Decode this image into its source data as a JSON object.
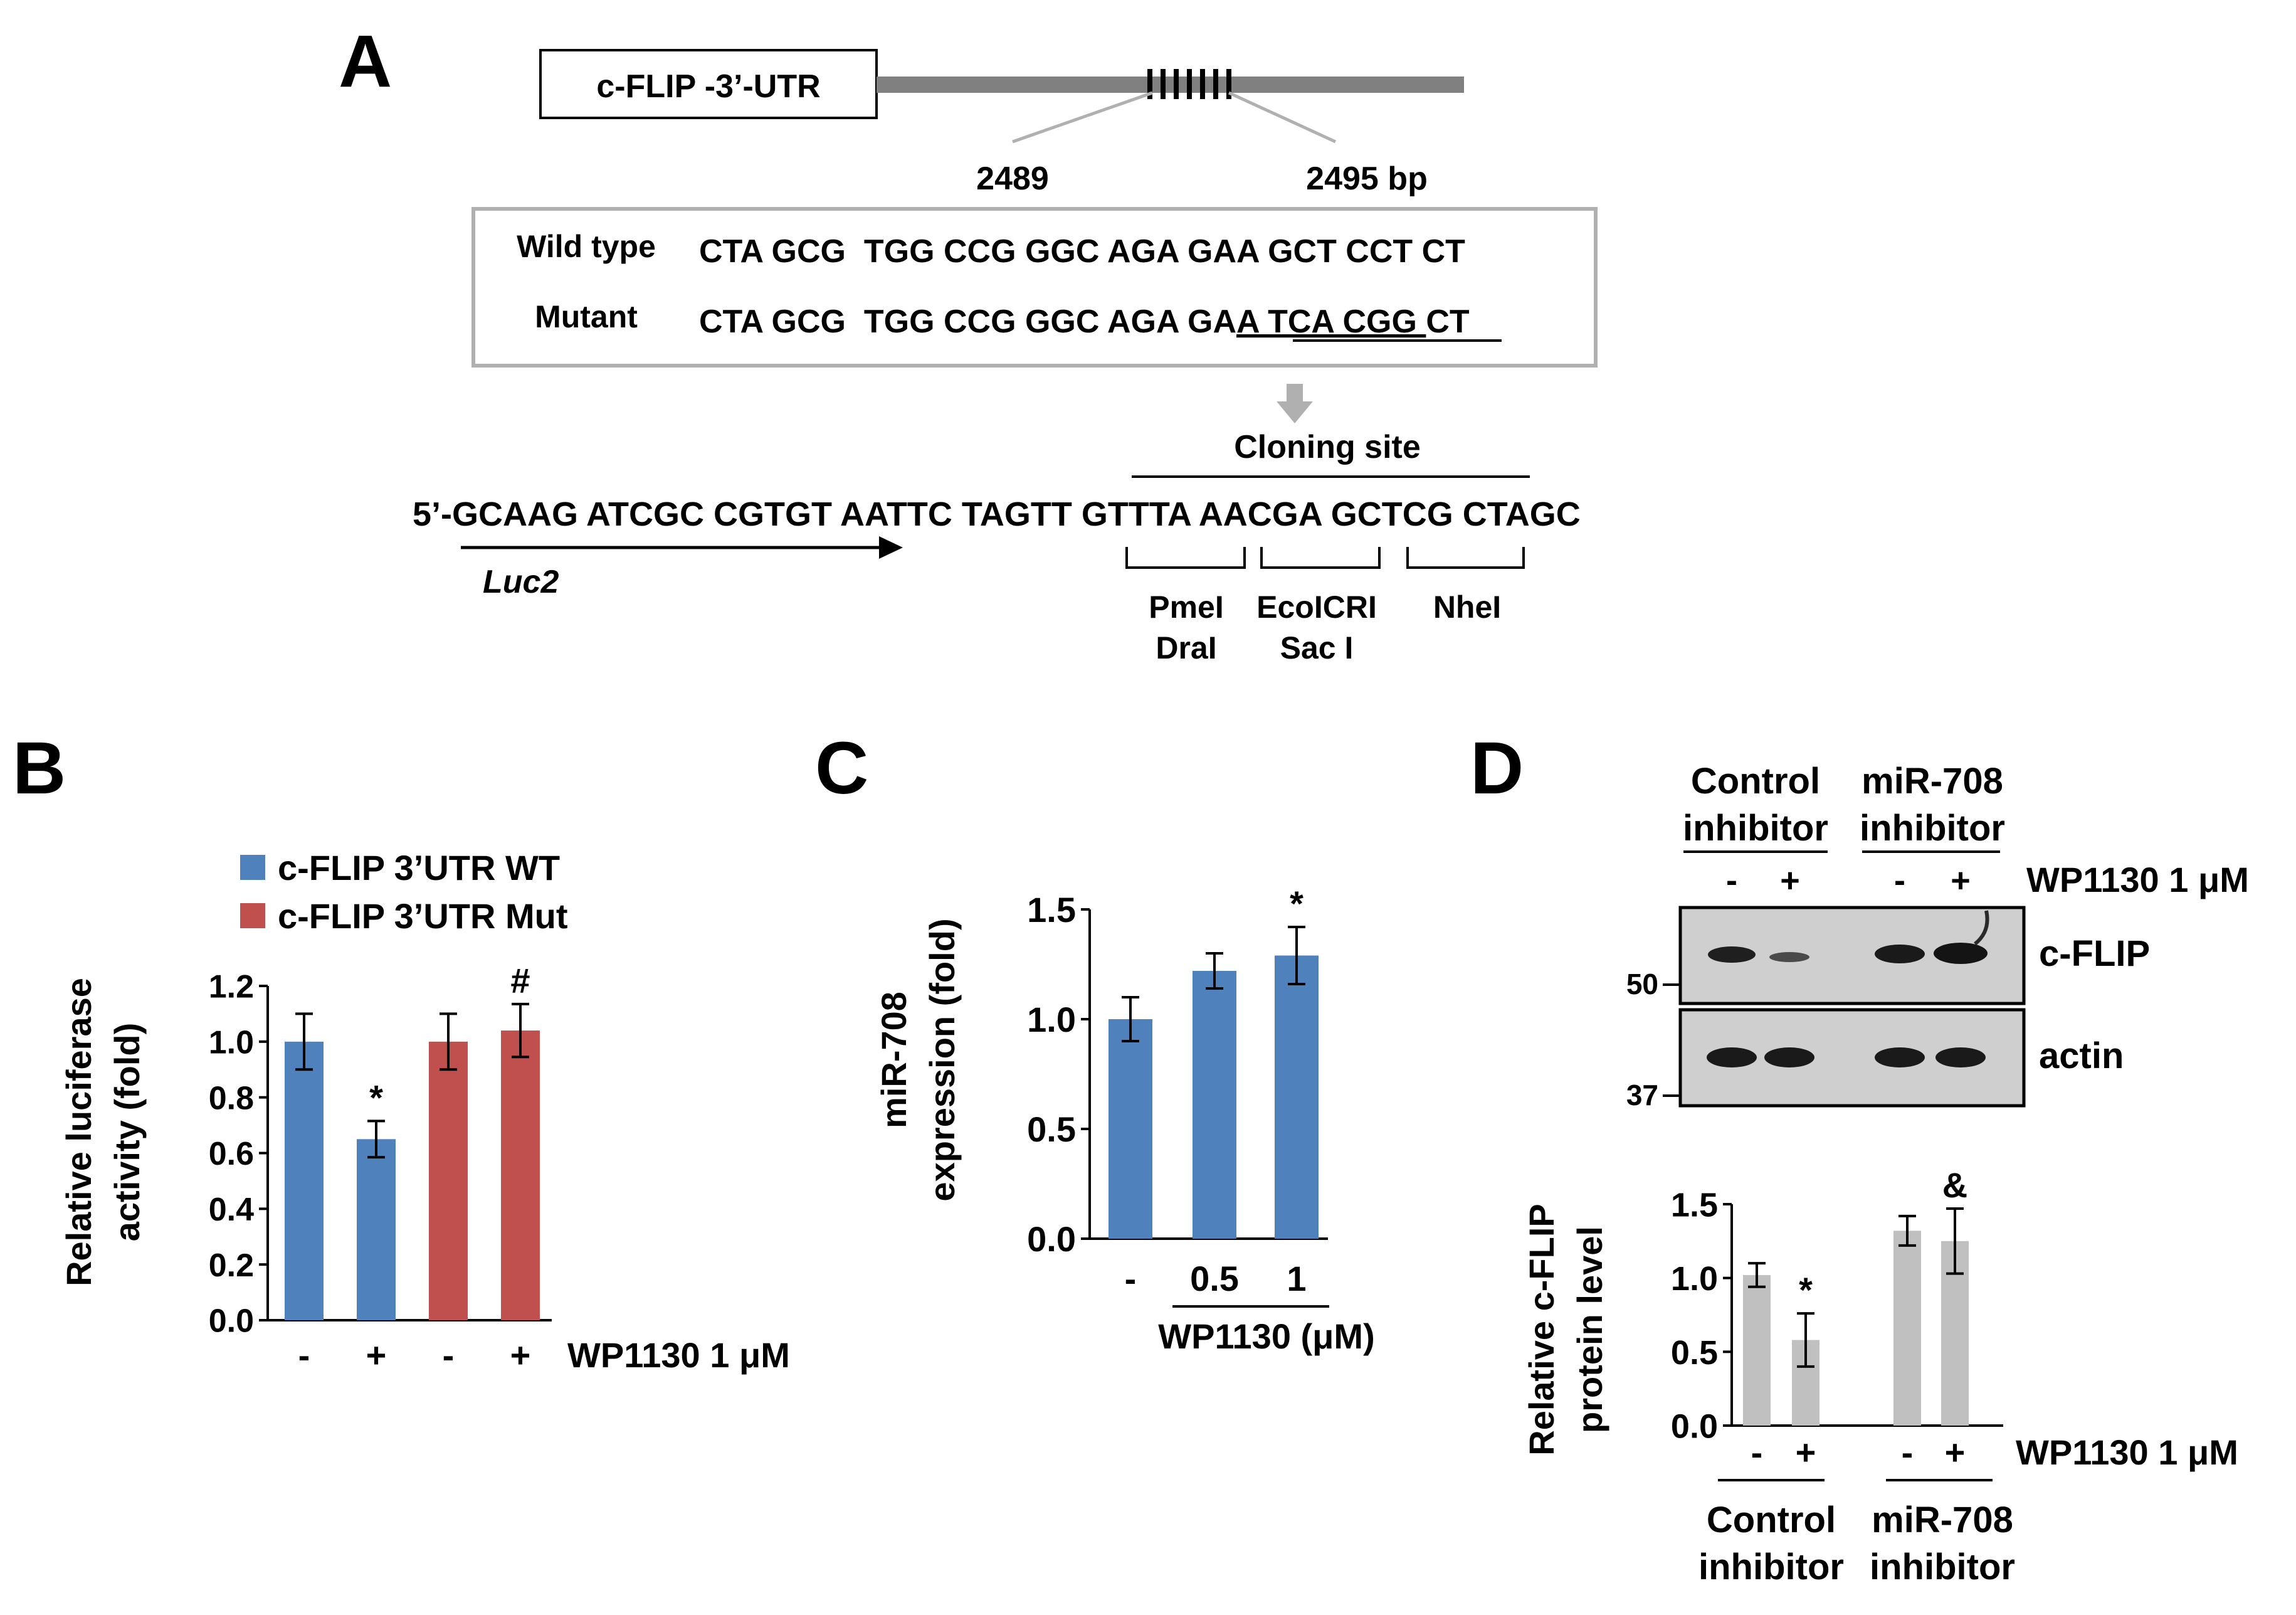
{
  "panel_labels": {
    "a": "A",
    "b": "B",
    "c": "C",
    "d": "D"
  },
  "panel_a": {
    "construct_label": "c-FLIP -3’-UTR",
    "pos_start": "2489",
    "pos_end": "2495 bp",
    "wt_label": "Wild type",
    "wt_seq": "CTA GCG  TGG CCG GGC AGA GAA GCT CCT CT",
    "mut_label": "Mutant",
    "mut_seq_a": "CTA GCG  TGG CCG GGC AGA GA",
    "mut_seq_b": "A TCA CGG ",
    "mut_seq_c": "CT",
    "cloning_site": "Cloning site",
    "vector_seq": "5’-GCAAG ATCGC CGTGT AATTC TAGTT GTTTA AACGA GCTCG CTAGC",
    "luc_label": "Luc2",
    "site1a": "PmeI",
    "site1b": "DraI",
    "site2a": "EcoICRI",
    "site2b": "Sac I",
    "site3": "NheI"
  },
  "panel_b": {
    "ylabel1": "Relative luciferase",
    "ylabel2": "activity (fold)",
    "treatment": "WP1130 1 μM",
    "colors": {
      "wt": "#4f81bd",
      "mut": "#c0504d"
    },
    "chart_data": {
      "type": "bar",
      "ylim": [
        0,
        1.2
      ],
      "yticks": [
        "0.0",
        "0.2",
        "0.4",
        "0.6",
        "0.8",
        "1.0",
        "1.2"
      ],
      "categories": [
        "-",
        "+",
        "-",
        "+"
      ],
      "legend": [
        "c-FLIP 3’UTR WT",
        "c-FLIP 3’UTR Mut"
      ],
      "bars": [
        {
          "series": "c-FLIP 3’UTR WT",
          "value": 1.0,
          "err": 0.1,
          "mark": ""
        },
        {
          "series": "c-FLIP 3’UTR WT",
          "value": 0.65,
          "err": 0.065,
          "mark": "*"
        },
        {
          "series": "c-FLIP 3’UTR Mut",
          "value": 1.0,
          "err": 0.1,
          "mark": ""
        },
        {
          "series": "c-FLIP 3’UTR Mut",
          "value": 1.04,
          "err": 0.095,
          "mark": "#"
        }
      ]
    }
  },
  "panel_c": {
    "ylabel1": "miR-708",
    "ylabel2": "expression (fold)",
    "xlabel": "WP1130 (μM)",
    "color": "#4f81bd",
    "chart_data": {
      "type": "bar",
      "ylim": [
        0,
        1.5
      ],
      "yticks": [
        "0.0",
        "0.5",
        "1.0",
        "1.5"
      ],
      "categories": [
        "-",
        "0.5",
        "1"
      ],
      "values": [
        1.0,
        1.22,
        1.29
      ],
      "errors": [
        0.1,
        0.08,
        0.13
      ],
      "marks": [
        "",
        "",
        "*"
      ]
    }
  },
  "panel_d": {
    "blot": {
      "group1a": "Control",
      "group1b": "inhibitor",
      "group2a": "miR-708",
      "group2b": "inhibitor",
      "lanes": [
        "-",
        "+",
        "-",
        "+"
      ],
      "treatment": "WP1130 1 μM",
      "band1": "c-FLIP",
      "band2": "actin",
      "mw1": "50",
      "mw2": "37"
    },
    "ylabel1": "Relative c-FLIP",
    "ylabel2": "protein level",
    "treatment": "WP1130 1 μM",
    "group1a": "Control",
    "group1b": "inhibitor",
    "group2a": "miR-708",
    "group2b": "inhibitor",
    "color": "#c0c0c0",
    "chart_data": {
      "type": "bar",
      "ylim": [
        0,
        1.5
      ],
      "yticks": [
        "0.0",
        "0.5",
        "1.0",
        "1.5"
      ],
      "categories": [
        "-",
        "+",
        "-",
        "+"
      ],
      "values": [
        1.02,
        0.58,
        1.32,
        1.25
      ],
      "errors": [
        0.08,
        0.18,
        0.1,
        0.22
      ],
      "marks": [
        "",
        "*",
        "",
        "&"
      ]
    }
  }
}
